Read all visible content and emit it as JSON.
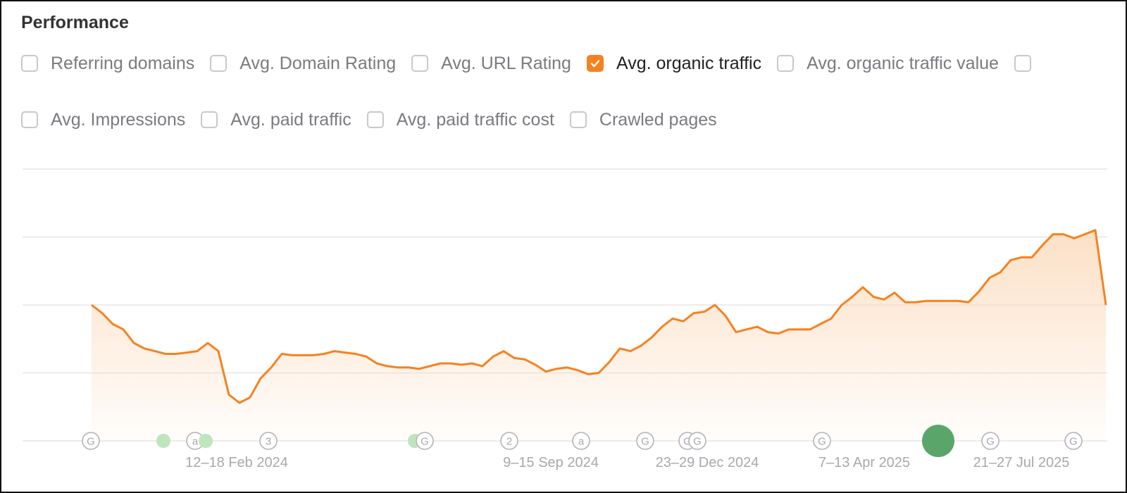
{
  "panel": {
    "title": "Performance"
  },
  "metrics": [
    {
      "label": "Referring domains",
      "checked": false
    },
    {
      "label": "Avg. Domain Rating",
      "checked": false
    },
    {
      "label": "Avg. URL Rating",
      "checked": false
    },
    {
      "label": "Avg. organic traffic",
      "checked": true
    },
    {
      "label": "Avg. organic traffic value",
      "checked": false
    },
    {
      "label": "",
      "checked": false
    },
    {
      "label": "Avg. Impressions",
      "checked": false
    },
    {
      "label": "Avg. paid traffic",
      "checked": false
    },
    {
      "label": "Avg. paid traffic cost",
      "checked": false
    },
    {
      "label": "Crawled pages",
      "checked": false
    }
  ],
  "colors": {
    "line": "#f58220",
    "fill": "#fbd6b4",
    "grid": "#e6e6e9",
    "marker_stroke": "#b3b3b8",
    "dot_light": "#bfe5bd",
    "dot_dark": "#5aa66a"
  },
  "chart_data": {
    "type": "area",
    "title": "",
    "xlabel": "",
    "ylabel": "",
    "grid": true,
    "ylim": [
      0,
      100
    ],
    "x_ticks": [
      "12–18 Feb 2024",
      "9–15 Sep 2024",
      "23–29 Dec 2024",
      "7–13 Apr 2025",
      "21–27 Jul 2025"
    ],
    "series": [
      {
        "name": "",
        "values": [
          50,
          47,
          43,
          41,
          36,
          34,
          33,
          32,
          32,
          32.5,
          33,
          36,
          33,
          17,
          14,
          16,
          23,
          27,
          32,
          31.5,
          31.5,
          31.5,
          32,
          33,
          32.5,
          32,
          31,
          28.5,
          27.5,
          27,
          27,
          26.5,
          27.5,
          28.5,
          28.5,
          28,
          28.5,
          27.5,
          31,
          33,
          30.5,
          30,
          28,
          25.5,
          26.5,
          27,
          26,
          24.5,
          25,
          29,
          34,
          33,
          35,
          38,
          42,
          45,
          44,
          47,
          47.5,
          50,
          46,
          40,
          41,
          42,
          40,
          39.5,
          41,
          41,
          41,
          43,
          45,
          50,
          53,
          56.5,
          53,
          52,
          54.5,
          51,
          51,
          51.5,
          51.5,
          51.5,
          51.5,
          51,
          55,
          60,
          62,
          66.5,
          67.5,
          67.5,
          72,
          76,
          76,
          74.5,
          76,
          77.5,
          50
        ]
      }
    ],
    "markers": [
      {
        "label": "G",
        "kind": "ring"
      },
      {
        "label": "",
        "kind": "dot-light"
      },
      {
        "label": "a",
        "kind": "ring"
      },
      {
        "label": "",
        "kind": "dot-light"
      },
      {
        "label": "3",
        "kind": "ring"
      },
      {
        "label": "",
        "kind": "dot-light"
      },
      {
        "label": "G",
        "kind": "ring"
      },
      {
        "label": "2",
        "kind": "ring"
      },
      {
        "label": "a",
        "kind": "ring"
      },
      {
        "label": "G",
        "kind": "ring"
      },
      {
        "label": "G",
        "kind": "ring"
      },
      {
        "label": "G",
        "kind": "ring"
      },
      {
        "label": "G",
        "kind": "ring"
      },
      {
        "label": "",
        "kind": "dot-dark"
      },
      {
        "label": "G",
        "kind": "ring"
      },
      {
        "label": "G",
        "kind": "ring"
      }
    ]
  }
}
